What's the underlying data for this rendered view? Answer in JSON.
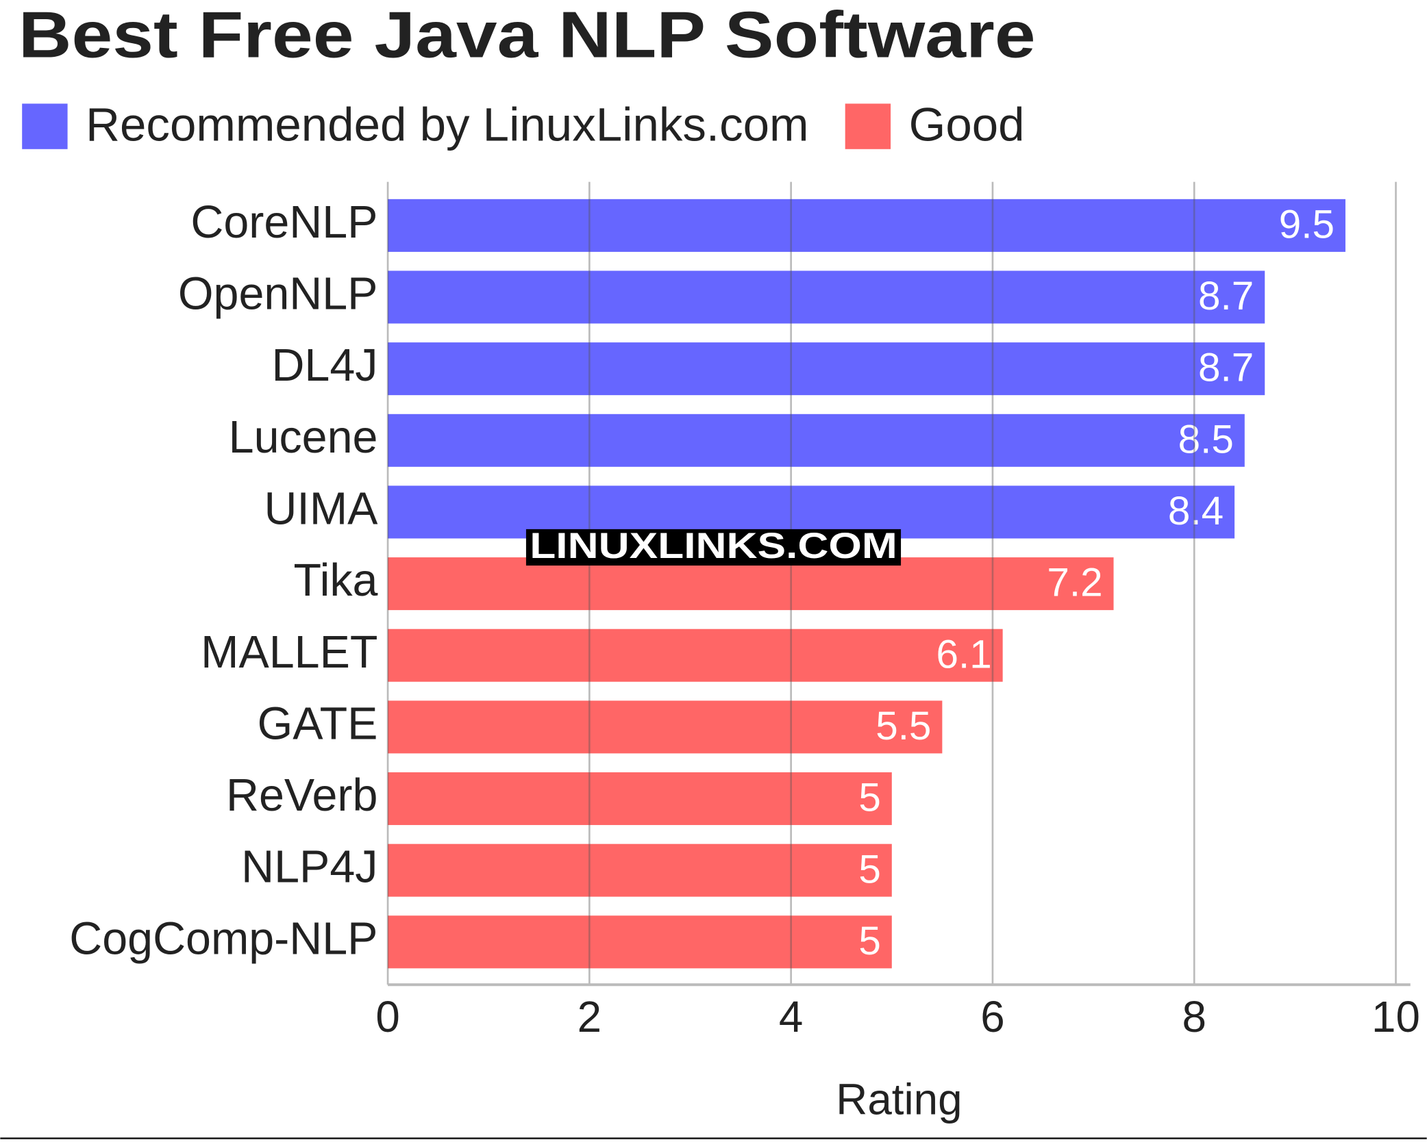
{
  "chart_data": {
    "type": "bar",
    "orientation": "horizontal",
    "title": "Best Free Java NLP Software",
    "watermark": "LINUXLINKS.COM",
    "categories": [
      "CoreNLP",
      "OpenNLP",
      "DL4J",
      "Lucene",
      "UIMA",
      "Tika",
      "MALLET",
      "GATE",
      "ReVerb",
      "NLP4J",
      "CogComp-NLP"
    ],
    "series": [
      {
        "name": "Recommended by LinuxLinks.com",
        "color": "#6666ff",
        "values": [
          9.5,
          8.7,
          8.7,
          8.5,
          8.4,
          null,
          null,
          null,
          null,
          null,
          null
        ]
      },
      {
        "name": "Good",
        "color": "#ff6666",
        "values": [
          null,
          null,
          null,
          null,
          null,
          7.2,
          6.1,
          5.5,
          5,
          5,
          5
        ]
      }
    ],
    "x_label": "Rating",
    "xlim": [
      0,
      10
    ],
    "xticks": [
      0,
      2,
      4,
      6,
      8,
      10
    ],
    "grid": true,
    "legend": "top-left"
  }
}
